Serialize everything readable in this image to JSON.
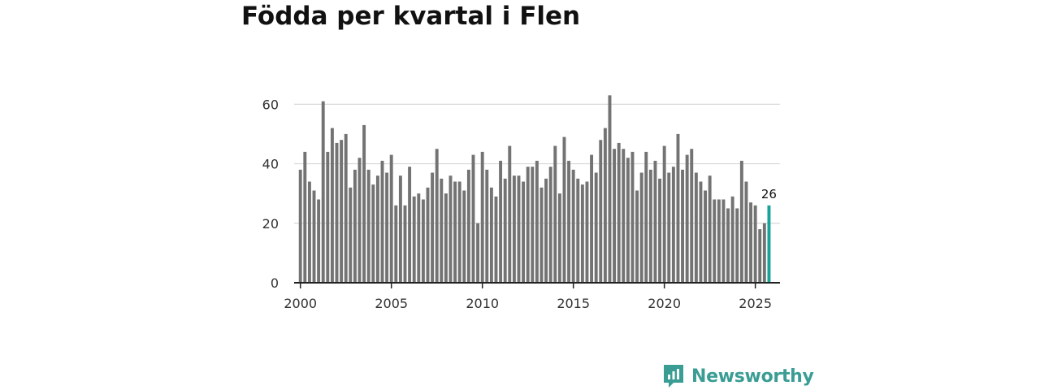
{
  "chart_data": {
    "type": "bar",
    "title": "Födda per kvartal i Flen",
    "xlabel": "",
    "ylabel": "",
    "ylim": [
      0,
      65
    ],
    "xlim": [
      1999.7,
      2026.4
    ],
    "y_ticks": [
      0,
      20,
      40,
      60
    ],
    "x_ticks": [
      2000,
      2005,
      2010,
      2015,
      2020,
      2025
    ],
    "grid": true,
    "bar_color": "#737373",
    "highlight_color": "#17a398",
    "highlight_label": "26",
    "series": [
      {
        "name": "Födda",
        "start_year": 2000,
        "periods_per_year": 4,
        "values": [
          38,
          44,
          34,
          31,
          28,
          61,
          44,
          52,
          47,
          48,
          50,
          32,
          38,
          42,
          53,
          38,
          33,
          36,
          41,
          37,
          43,
          26,
          36,
          26,
          39,
          29,
          30,
          28,
          32,
          37,
          45,
          35,
          30,
          36,
          34,
          34,
          31,
          38,
          43,
          20,
          44,
          38,
          32,
          29,
          41,
          35,
          46,
          36,
          36,
          34,
          39,
          39,
          41,
          32,
          35,
          39,
          46,
          30,
          49,
          41,
          38,
          35,
          33,
          34,
          43,
          37,
          48,
          52,
          63,
          45,
          47,
          45,
          42,
          44,
          31,
          37,
          44,
          38,
          41,
          35,
          46,
          37,
          39,
          50,
          38,
          43,
          45,
          37,
          34,
          31,
          36,
          28,
          28,
          28,
          25,
          29,
          25,
          41,
          34,
          27,
          26,
          18,
          20,
          26
        ]
      }
    ]
  },
  "brand": {
    "name": "Newsworthy",
    "color": "#3a9d94",
    "icon": "newsworthy-logo-icon"
  }
}
